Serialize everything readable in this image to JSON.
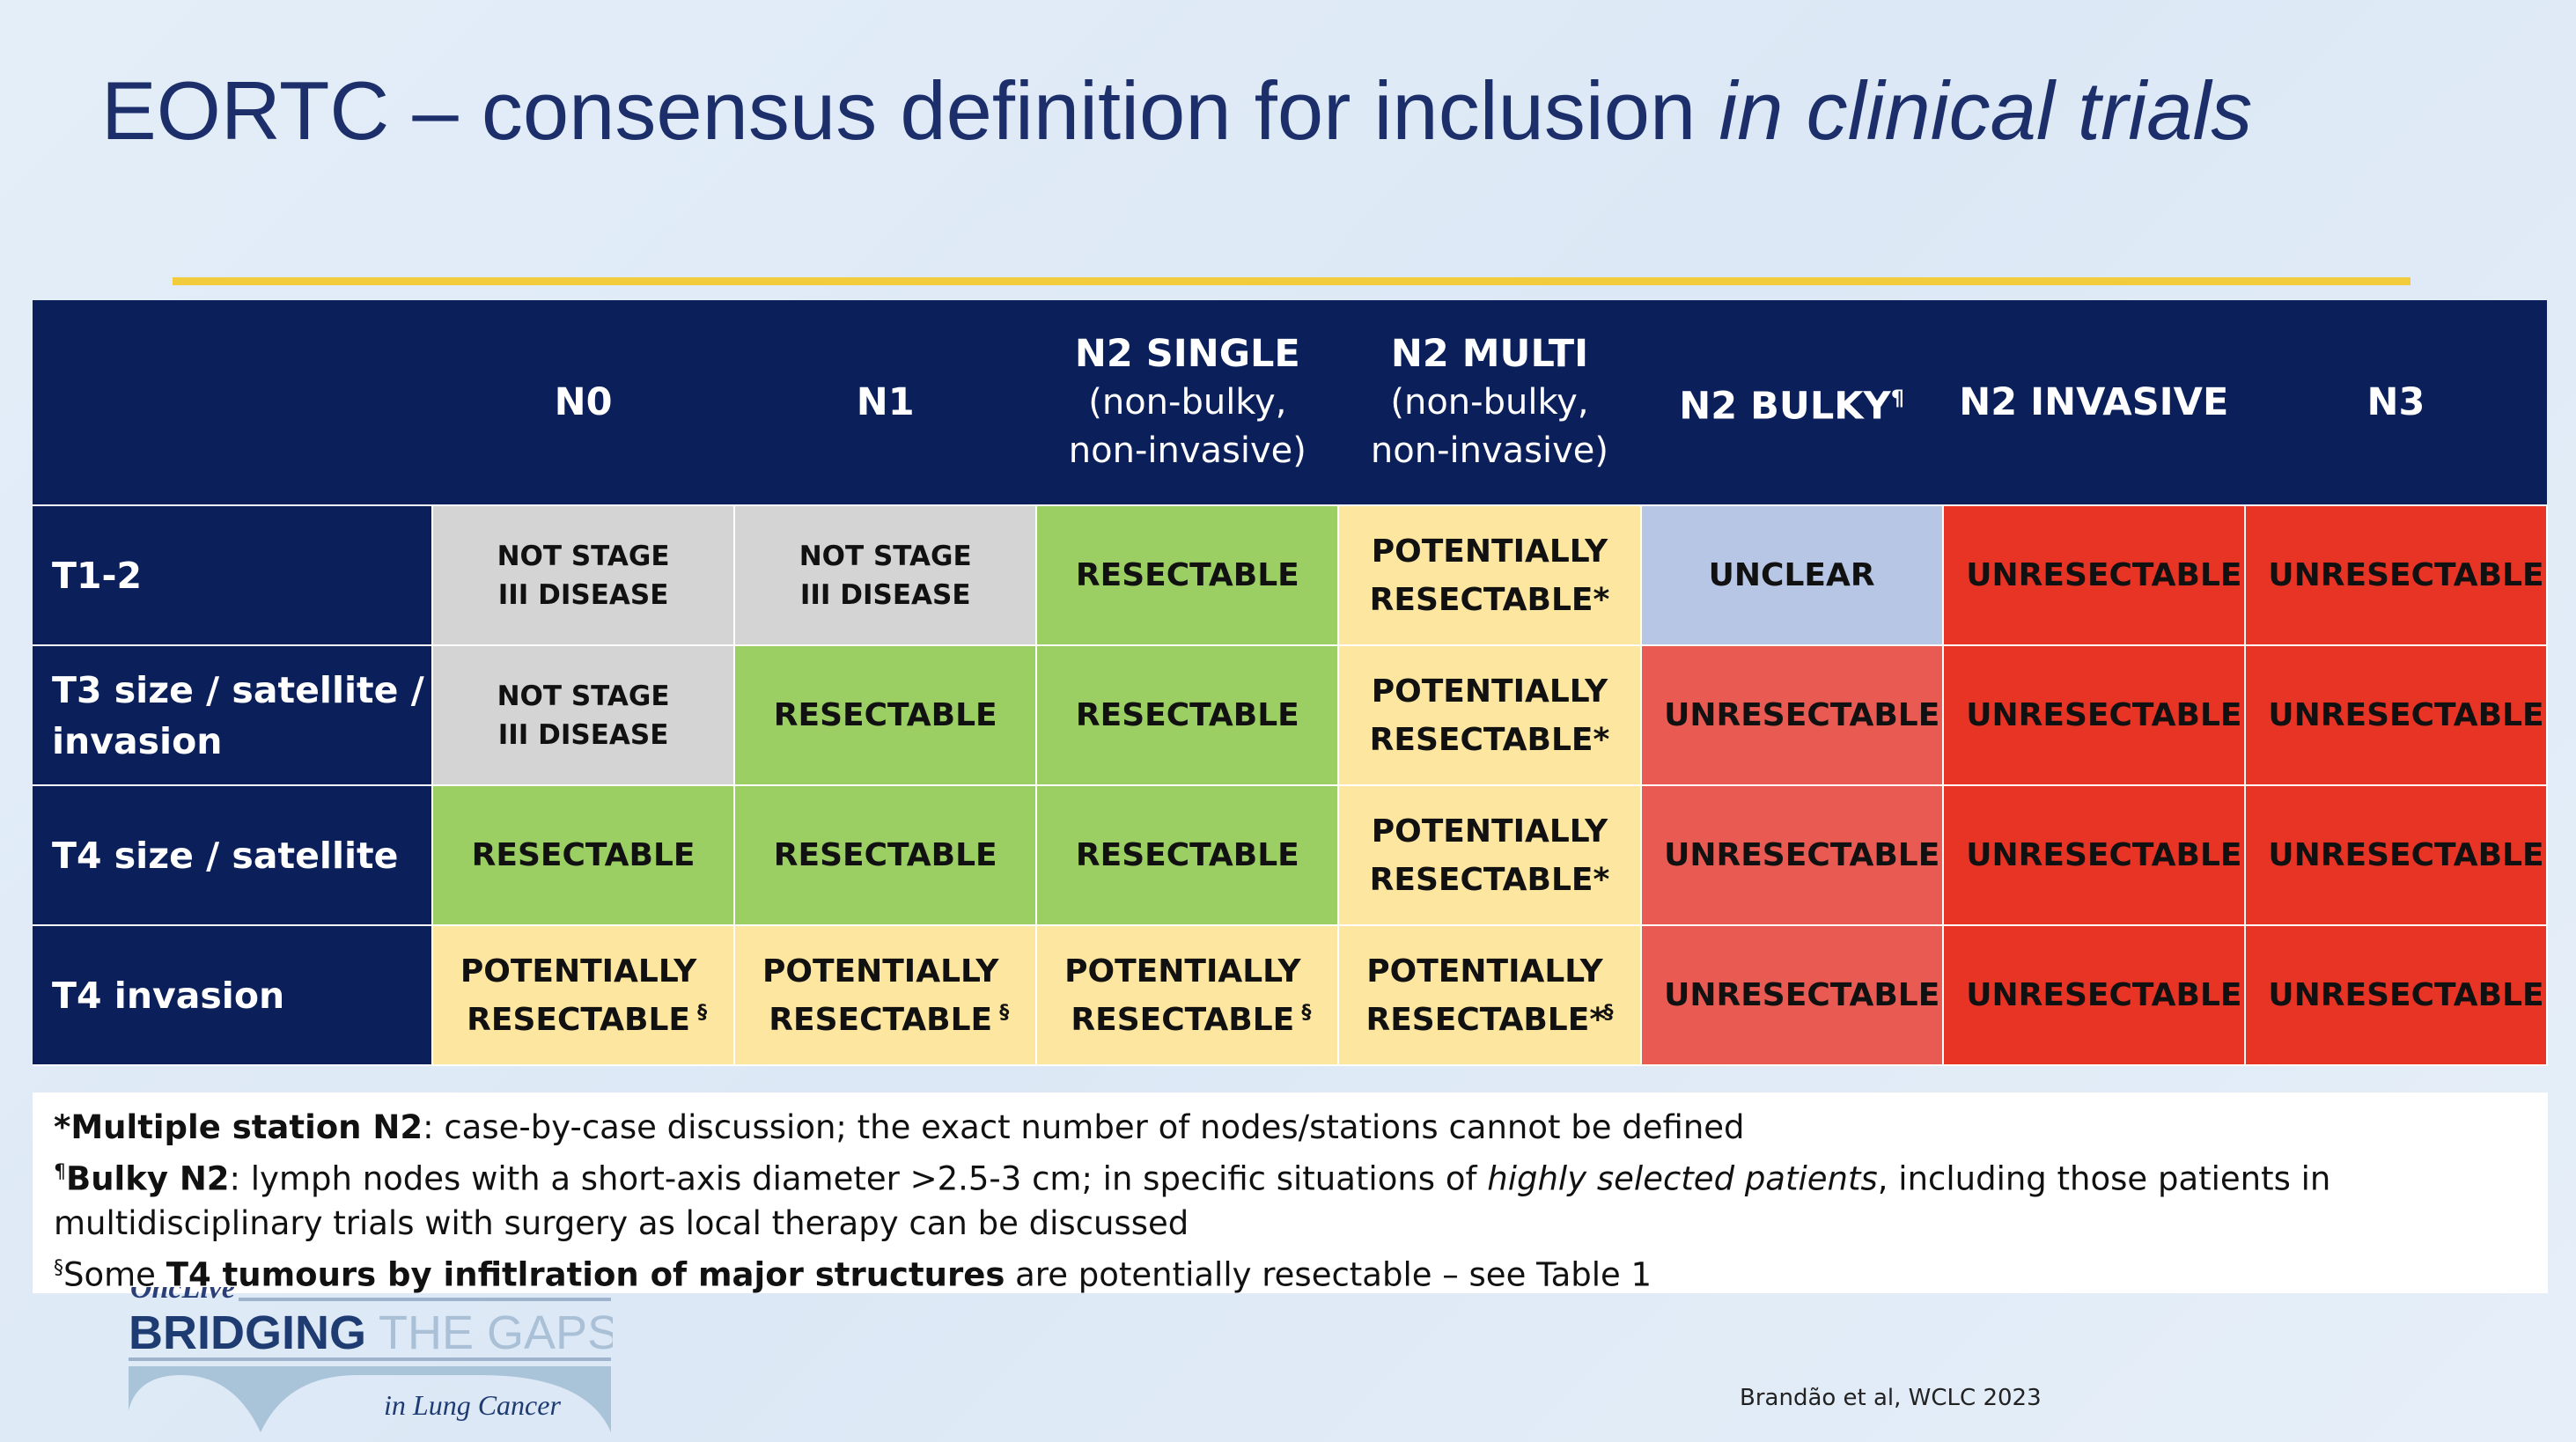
{
  "title": {
    "main": "EORTC – consensus definition for inclusion ",
    "italic": "in clinical trials"
  },
  "colors": {
    "navy": "#0b1f5b",
    "grey": "#d4d4d4",
    "green": "#9ccf63",
    "yellow": "#fde7a0",
    "blue": "#b6c6e4",
    "red": "#e83425",
    "lightred": "#e85a52",
    "rule": "#f2cc3d"
  },
  "table": {
    "columns": [
      {
        "label": "",
        "sub": "",
        "sup": ""
      },
      {
        "label": "N0",
        "sub": "",
        "sup": ""
      },
      {
        "label": "N1",
        "sub": "",
        "sup": ""
      },
      {
        "label": "N2 SINGLE",
        "sub": "(non-bulky, non-invasive)",
        "sup": ""
      },
      {
        "label": "N2 MULTI",
        "sub": "(non-bulky, non-invasive)",
        "sup": ""
      },
      {
        "label": "N2 BULKY",
        "sub": "",
        "sup": "¶"
      },
      {
        "label": "N2 INVASIVE",
        "sub": "",
        "sup": ""
      },
      {
        "label": "N3",
        "sub": "",
        "sup": ""
      }
    ],
    "rows": [
      {
        "label": "T1-2",
        "cells": [
          {
            "text": "NOT STAGE III DISEASE",
            "sup": "",
            "color": "grey"
          },
          {
            "text": "NOT STAGE III DISEASE",
            "sup": "",
            "color": "grey"
          },
          {
            "text": "RESECTABLE",
            "sup": "",
            "color": "green"
          },
          {
            "text": "POTENTIALLY RESECTABLE*",
            "sup": "",
            "color": "yellow"
          },
          {
            "text": "UNCLEAR",
            "sup": "",
            "color": "blue"
          },
          {
            "text": "UNRESECTABLE",
            "sup": "",
            "color": "red"
          },
          {
            "text": "UNRESECTABLE",
            "sup": "",
            "color": "red"
          }
        ]
      },
      {
        "label": "T3 size / satellite / invasion",
        "cells": [
          {
            "text": "NOT STAGE III DISEASE",
            "sup": "",
            "color": "grey"
          },
          {
            "text": "RESECTABLE",
            "sup": "",
            "color": "green"
          },
          {
            "text": "RESECTABLE",
            "sup": "",
            "color": "green"
          },
          {
            "text": "POTENTIALLY RESECTABLE*",
            "sup": "",
            "color": "yellow"
          },
          {
            "text": "UNRESECTABLE",
            "sup": "",
            "color": "lightred"
          },
          {
            "text": "UNRESECTABLE",
            "sup": "",
            "color": "red"
          },
          {
            "text": "UNRESECTABLE",
            "sup": "",
            "color": "red"
          }
        ]
      },
      {
        "label": "T4 size / satellite",
        "cells": [
          {
            "text": "RESECTABLE",
            "sup": "",
            "color": "green"
          },
          {
            "text": "RESECTABLE",
            "sup": "",
            "color": "green"
          },
          {
            "text": "RESECTABLE",
            "sup": "",
            "color": "green"
          },
          {
            "text": "POTENTIALLY RESECTABLE*",
            "sup": "",
            "color": "yellow"
          },
          {
            "text": "UNRESECTABLE",
            "sup": "",
            "color": "lightred"
          },
          {
            "text": "UNRESECTABLE",
            "sup": "",
            "color": "red"
          },
          {
            "text": "UNRESECTABLE",
            "sup": "",
            "color": "red"
          }
        ]
      },
      {
        "label": "T4 invasion",
        "cells": [
          {
            "text": "POTENTIALLY RESECTABLE",
            "sup": "§",
            "color": "yellow"
          },
          {
            "text": "POTENTIALLY RESECTABLE",
            "sup": "§",
            "color": "yellow"
          },
          {
            "text": "POTENTIALLY RESECTABLE",
            "sup": "§",
            "color": "yellow"
          },
          {
            "text": "POTENTIALLY RESECTABLE*",
            "sup": "§",
            "color": "yellow"
          },
          {
            "text": "UNRESECTABLE",
            "sup": "",
            "color": "lightred"
          },
          {
            "text": "UNRESECTABLE",
            "sup": "",
            "color": "red"
          },
          {
            "text": "UNRESECTABLE",
            "sup": "",
            "color": "red"
          }
        ]
      }
    ]
  },
  "footnotes": {
    "n1_bold": "*Multiple station N2",
    "n1_text": ": case-by-case discussion; the exact number of nodes/stations cannot be defined",
    "n2_sup": "¶",
    "n2_bold": "Bulky N2",
    "n2_text1": ": lymph nodes with a short-axis diameter >2.5-3 cm; in specific situations of ",
    "n2_italic": "highly selected patients",
    "n2_text2": ", including those patients in multidisciplinary trials with surgery as local therapy can be discussed",
    "n3_sup": "§",
    "n3_text1": "Some ",
    "n3_bold": "T4 tumours by infitlration of major structures",
    "n3_text2": " are potentially resectable – see Table 1"
  },
  "logo": {
    "top": "OncLive",
    "bold": "BRIDGING",
    "light": " THE GAPS",
    "sub": "in Lung Cancer"
  },
  "citation": "Brandão et al, WCLC 2023"
}
